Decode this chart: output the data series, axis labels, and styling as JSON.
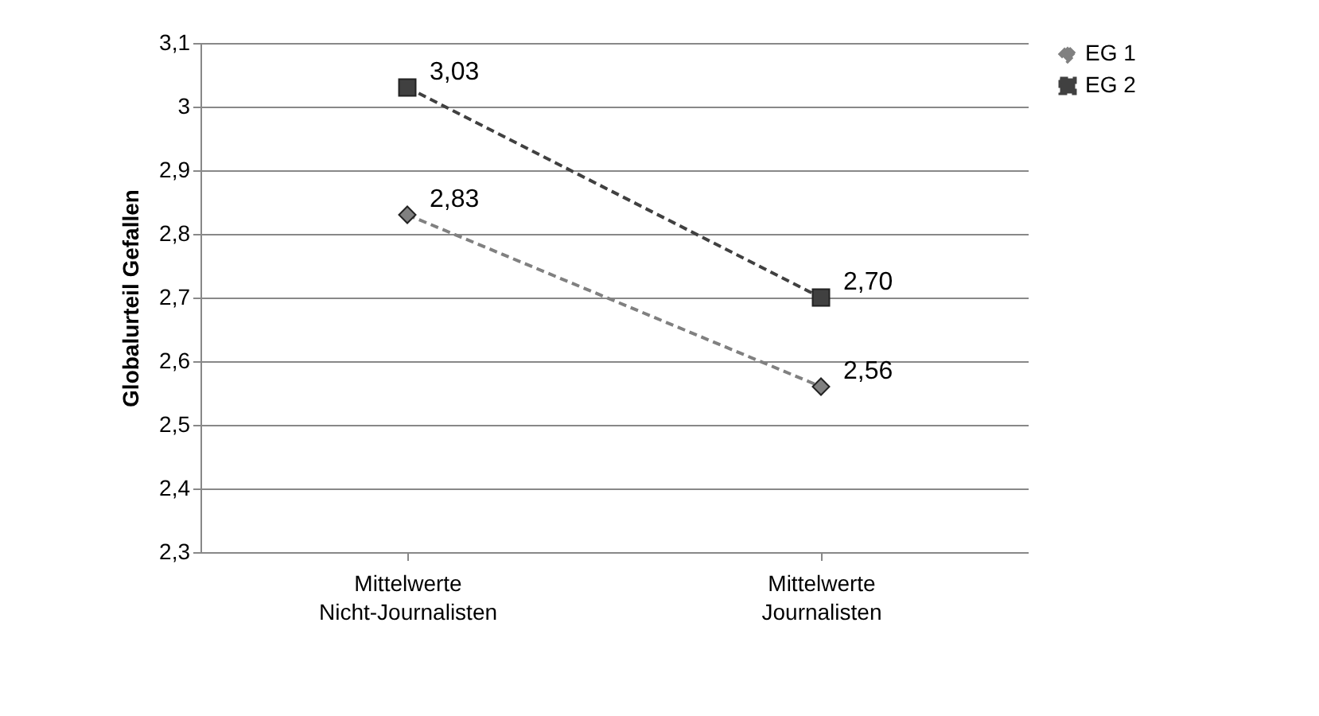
{
  "chart_data": {
    "type": "line",
    "ylabel": "Globalurteil Gefallen",
    "categories": [
      "Mittelwerte Nicht-Journalisten",
      "Mittelwerte Journalisten"
    ],
    "series": [
      {
        "name": "EG 1",
        "color": "#808080",
        "marker": "diamond",
        "values": [
          2.83,
          2.56
        ],
        "value_labels": [
          "2,83",
          "2,56"
        ]
      },
      {
        "name": "EG 2",
        "color": "#404040",
        "marker": "square",
        "values": [
          3.03,
          2.7
        ],
        "value_labels": [
          "3,03",
          "2,70"
        ]
      }
    ],
    "ylim": [
      2.3,
      3.1
    ],
    "yticks": [
      {
        "value": 2.3,
        "label": "2,3"
      },
      {
        "value": 2.4,
        "label": "2,4"
      },
      {
        "value": 2.5,
        "label": "2,5"
      },
      {
        "value": 2.6,
        "label": "2,6"
      },
      {
        "value": 2.7,
        "label": "2,7"
      },
      {
        "value": 2.8,
        "label": "2,8"
      },
      {
        "value": 2.9,
        "label": "2,9"
      },
      3,
      {
        "value": 3.1,
        "label": "3,1"
      }
    ],
    "grid": "y",
    "legend": "right",
    "line_style": "dashed"
  }
}
